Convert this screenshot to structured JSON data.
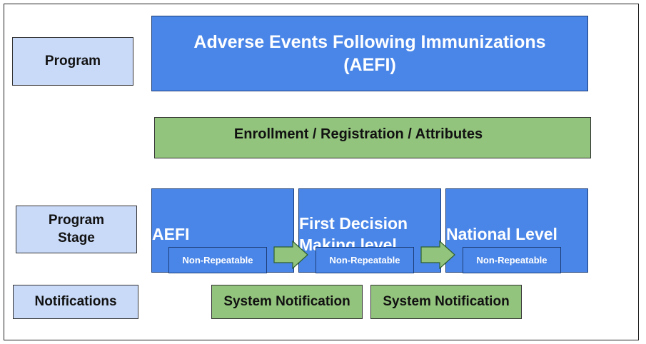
{
  "labels": {
    "program": "Program",
    "program_stage_line1": "Program",
    "program_stage_line2": "Stage",
    "notifications": "Notifications"
  },
  "program": {
    "title_line1": "Adverse Events Following Immunizations",
    "title_line2": "(AEFI)"
  },
  "enrollment": {
    "text": "Enrollment / Registration / Attributes"
  },
  "stages": [
    {
      "title_line1": "AEFI",
      "title_line2": "",
      "badge": "Non-Repeatable"
    },
    {
      "title_line1": "First Decision",
      "title_line2": "Making level",
      "badge": "Non-Repeatable"
    },
    {
      "title_line1": "National Level",
      "title_line2": "",
      "badge": "Non-Repeatable"
    }
  ],
  "notifications": [
    {
      "text": "System Notification"
    },
    {
      "text": "System Notification"
    }
  ],
  "colors": {
    "label_fill": "#c9daf8",
    "program_fill": "#4a86e8",
    "green_fill": "#93c47d",
    "text_dark": "#111111",
    "text_light": "#ffffff"
  }
}
